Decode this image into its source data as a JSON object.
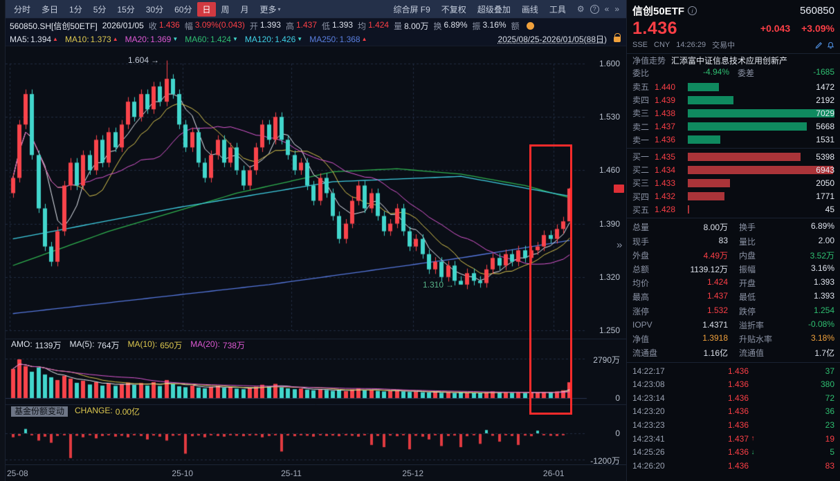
{
  "icons": {
    "gear": "⚙",
    "help": "?",
    "chevron_left": "«",
    "chevron_right": "»",
    "collapse": "»",
    "caret_down": "▾",
    "arrow_right": "→",
    "up": "▲",
    "down": "▼",
    "info": "i"
  },
  "toolbar": {
    "periods": [
      {
        "label": "分时"
      },
      {
        "label": "多日"
      },
      {
        "label": "1分"
      },
      {
        "label": "5分"
      },
      {
        "label": "15分"
      },
      {
        "label": "30分"
      },
      {
        "label": "60分"
      },
      {
        "label": "日",
        "active": true
      },
      {
        "label": "周"
      },
      {
        "label": "月"
      },
      {
        "label": "更多",
        "dropdown": true
      }
    ],
    "actions": [
      {
        "label": "综合屏 F9"
      },
      {
        "label": "不复权"
      },
      {
        "label": "超级叠加"
      },
      {
        "label": "画线"
      },
      {
        "label": "工具"
      }
    ]
  },
  "quote_bar": {
    "symbol": "560850.SH[信创50ETF]",
    "date": "2026/01/05",
    "fields": [
      {
        "label": "收",
        "value": "1.436",
        "color": "red"
      },
      {
        "label": "幅",
        "value": "3.09%(0.043)",
        "color": "red"
      },
      {
        "label": "开",
        "value": "1.393",
        "color": "white"
      },
      {
        "label": "高",
        "value": "1.437",
        "color": "red"
      },
      {
        "label": "低",
        "value": "1.393",
        "color": "white"
      },
      {
        "label": "均",
        "value": "1.424",
        "color": "red"
      },
      {
        "label": "量",
        "value": "8.00万",
        "color": "white"
      },
      {
        "label": "换",
        "value": "6.89%",
        "color": "white"
      },
      {
        "label": "振",
        "value": "3.16%",
        "color": "white"
      },
      {
        "label": "额",
        "value": "",
        "color": "white"
      }
    ]
  },
  "ma_bar": {
    "items": [
      {
        "label": "MA5:",
        "value": "1.394",
        "color": "white",
        "dir": "up"
      },
      {
        "label": "MA10:",
        "value": "1.373",
        "color": "yellow",
        "dir": "up"
      },
      {
        "label": "MA20:",
        "value": "1.369",
        "color": "magenta",
        "dir": "down"
      },
      {
        "label": "MA60:",
        "value": "1.424",
        "color": "green",
        "dir": "down"
      },
      {
        "label": "MA120:",
        "value": "1.426",
        "color": "cyan",
        "dir": "down"
      },
      {
        "label": "MA250:",
        "value": "1.368",
        "color": "blue",
        "dir": "up"
      }
    ],
    "range": "2025/08/25-2026/01/05(88日)"
  },
  "chart": {
    "price_ticks": [
      "1.600",
      "1.530",
      "1.460",
      "1.390",
      "1.320",
      "1.250"
    ],
    "high_label": "1.604",
    "low_label": "1.310",
    "vol_axis_top": "2790万",
    "vol_axis_zero": "0",
    "fund_axis_zero": "0",
    "fund_axis_bottom": "-1200万",
    "x_labels": [
      {
        "label": "25-08",
        "idx": 0
      },
      {
        "label": "25-10",
        "idx": 27
      },
      {
        "label": "25-11",
        "idx": 44
      },
      {
        "label": "25-12",
        "idx": 63
      },
      {
        "label": "26-01",
        "idx": 85
      }
    ],
    "volume_legend": [
      {
        "label": "AMO:",
        "value": "1139万",
        "color": "white"
      },
      {
        "label": "MA(5):",
        "value": "764万",
        "color": "white"
      },
      {
        "label": "MA(10):",
        "value": "650万",
        "color": "yellow"
      },
      {
        "label": "MA(20):",
        "value": "738万",
        "color": "magenta"
      }
    ],
    "fund_label": "基金份额变动",
    "fund_change_label": "CHANGE:",
    "fund_change_value": "0.00亿"
  },
  "chart_data": {
    "type": "candlestick",
    "title": "信创50ETF 日K 2025/08/25-2026/01/05",
    "price_range": [
      1.25,
      1.6
    ],
    "volume_max": 2790,
    "fund_range": [
      -1200,
      0
    ],
    "open_first": 1.43,
    "overrides": {
      "high_idx": 24,
      "high_val": 1.604,
      "low_idx": 70,
      "low_val": 1.31,
      "last": {
        "open": 1.393,
        "high": 1.437,
        "low": 1.393,
        "close": 1.436
      }
    },
    "closes": [
      1.45,
      1.52,
      1.56,
      1.48,
      1.41,
      1.36,
      1.34,
      1.38,
      1.44,
      1.47,
      1.44,
      1.48,
      1.46,
      1.5,
      1.47,
      1.51,
      1.49,
      1.52,
      1.55,
      1.53,
      1.56,
      1.54,
      1.57,
      1.55,
      1.58,
      1.56,
      1.52,
      1.49,
      1.51,
      1.47,
      1.45,
      1.48,
      1.5,
      1.47,
      1.49,
      1.46,
      1.44,
      1.46,
      1.49,
      1.52,
      1.5,
      1.53,
      1.5,
      1.48,
      1.46,
      1.47,
      1.44,
      1.42,
      1.45,
      1.43,
      1.4,
      1.37,
      1.39,
      1.42,
      1.44,
      1.41,
      1.43,
      1.4,
      1.38,
      1.39,
      1.41,
      1.38,
      1.36,
      1.37,
      1.35,
      1.33,
      1.34,
      1.32,
      1.335,
      1.315,
      1.31,
      1.325,
      1.315,
      1.312,
      1.33,
      1.345,
      1.335,
      1.35,
      1.34,
      1.355,
      1.345,
      1.355,
      1.36,
      1.375,
      1.37,
      1.383,
      1.393,
      1.436
    ],
    "volumes": [
      2100,
      2790,
      2300,
      1900,
      2200,
      1700,
      1500,
      1300,
      1600,
      1400,
      1100,
      1250,
      980,
      1150,
      900,
      1050,
      880,
      1000,
      1120,
      950,
      1080,
      900,
      1150,
      870,
      1300,
      1000,
      850,
      780,
      900,
      760,
      700,
      820,
      880,
      740,
      800,
      680,
      640,
      720,
      820,
      960,
      840,
      1020,
      780,
      700,
      640,
      690,
      600,
      560,
      640,
      580,
      520,
      560,
      500,
      620,
      700,
      560,
      600,
      520,
      480,
      500,
      560,
      480,
      440,
      470,
      420,
      400,
      430,
      380,
      420,
      360,
      400,
      380,
      350,
      370,
      420,
      480,
      400,
      440,
      380,
      430,
      360,
      420,
      390,
      450,
      400,
      480,
      560,
      1139
    ],
    "fund_change": [
      -150,
      -80,
      200,
      -60,
      -300,
      -120,
      -400,
      -90,
      -60,
      -1100,
      -80,
      -150,
      -60,
      -200,
      -90,
      -60,
      -120,
      -80,
      -150,
      -60,
      -90,
      -250,
      -70,
      -120,
      -300,
      -80,
      -60,
      -900,
      -100,
      -70,
      -150,
      -60,
      -90,
      -120,
      -60,
      -80,
      -100,
      -70,
      -60,
      -150,
      -90,
      -60,
      -800,
      -70,
      -100,
      -60,
      -80,
      -120,
      -60,
      -90,
      -70,
      -100,
      -60,
      -80,
      -120,
      -60,
      -500,
      -90,
      -600,
      -70,
      -100,
      -60,
      -700,
      -80,
      -120,
      -250,
      -60,
      -550,
      -90,
      -70,
      -600,
      -100,
      -60,
      -450,
      150,
      -80,
      -350,
      -60,
      -90,
      -500,
      -70,
      -100,
      120,
      -60,
      -80,
      -90,
      -60,
      0
    ],
    "ma_long": {
      "ma60": [
        [
          0,
          1.335
        ],
        [
          15,
          1.38
        ],
        [
          35,
          1.43
        ],
        [
          50,
          1.458
        ],
        [
          60,
          1.462
        ],
        [
          70,
          1.455
        ],
        [
          80,
          1.44
        ],
        [
          87,
          1.424
        ]
      ],
      "ma120": [
        [
          0,
          1.37
        ],
        [
          25,
          1.41
        ],
        [
          50,
          1.445
        ],
        [
          70,
          1.452
        ],
        [
          87,
          1.426
        ]
      ],
      "ma250": [
        [
          0,
          1.272
        ],
        [
          40,
          1.31
        ],
        [
          70,
          1.345
        ],
        [
          87,
          1.368
        ]
      ]
    },
    "ma_windows": [
      5,
      10,
      20,
      60,
      120,
      250
    ]
  },
  "right_panel": {
    "name": "信创50ETF",
    "code": "560850",
    "price": "1.436",
    "change": "+0.043",
    "change_pct": "+3.09%",
    "exchange": "SSE",
    "currency": "CNY",
    "time": "14:26:29",
    "status": "交易中",
    "nav_label": "净值走势",
    "nav_value": "汇添富中证信息技术应用创新产",
    "weibi_label": "委比",
    "weibi": "-4.94%",
    "weicha_label": "委差",
    "weicha": "-1685",
    "asks": [
      {
        "label": "卖五",
        "price": "1.440",
        "vol": "1472",
        "pct": 21
      },
      {
        "label": "卖四",
        "price": "1.439",
        "vol": "2192",
        "pct": 31
      },
      {
        "label": "卖三",
        "price": "1.438",
        "vol": "7029",
        "pct": 100
      },
      {
        "label": "卖二",
        "price": "1.437",
        "vol": "5668",
        "pct": 81
      },
      {
        "label": "卖一",
        "price": "1.436",
        "vol": "1531",
        "pct": 22
      }
    ],
    "bids": [
      {
        "label": "买一",
        "price": "1.435",
        "vol": "5398",
        "pct": 77
      },
      {
        "label": "买二",
        "price": "1.434",
        "vol": "6943",
        "pct": 99
      },
      {
        "label": "买三",
        "price": "1.433",
        "vol": "2050",
        "pct": 29
      },
      {
        "label": "买四",
        "price": "1.432",
        "vol": "1771",
        "pct": 25
      },
      {
        "label": "买五",
        "price": "1.428",
        "vol": "45",
        "pct": 1
      }
    ],
    "stats": [
      {
        "l1": "总量",
        "v1": "8.00万",
        "c1": "white",
        "l2": "换手",
        "v2": "6.89%",
        "c2": "white"
      },
      {
        "l1": "现手",
        "v1": "83",
        "c1": "white",
        "l2": "量比",
        "v2": "2.00",
        "c2": "white"
      },
      {
        "l1": "外盘",
        "v1": "4.49万",
        "c1": "red",
        "l2": "内盘",
        "v2": "3.52万",
        "c2": "green"
      },
      {
        "l1": "总额",
        "v1": "1139.12万",
        "c1": "white",
        "l2": "振幅",
        "v2": "3.16%",
        "c2": "white"
      },
      {
        "l1": "均价",
        "v1": "1.424",
        "c1": "red",
        "l2": "开盘",
        "v2": "1.393",
        "c2": "white"
      },
      {
        "l1": "最高",
        "v1": "1.437",
        "c1": "red",
        "l2": "最低",
        "v2": "1.393",
        "c2": "white"
      },
      {
        "l1": "涨停",
        "v1": "1.532",
        "c1": "red",
        "l2": "跌停",
        "v2": "1.254",
        "c2": "green"
      },
      {
        "l1": "IOPV",
        "v1": "1.4371",
        "c1": "white",
        "l2": "溢折率",
        "v2": "-0.08%",
        "c2": "green"
      },
      {
        "l1": "净值",
        "v1": "1.3918",
        "c1": "orange",
        "l2": "升贴水率",
        "v2": "3.18%",
        "c2": "orange"
      },
      {
        "l1": "流通盘",
        "v1": "1.16亿",
        "c1": "white",
        "l2": "流通值",
        "v2": "1.7亿",
        "c2": "white"
      }
    ],
    "ticks": [
      {
        "time": "14:22:17",
        "price": "1.436",
        "arrow": "",
        "ac": "gray",
        "vol": "37",
        "vc": "green"
      },
      {
        "time": "14:23:08",
        "price": "1.436",
        "arrow": "",
        "ac": "gray",
        "vol": "380",
        "vc": "green"
      },
      {
        "time": "14:23:14",
        "price": "1.436",
        "arrow": "",
        "ac": "gray",
        "vol": "72",
        "vc": "green"
      },
      {
        "time": "14:23:20",
        "price": "1.436",
        "arrow": "",
        "ac": "gray",
        "vol": "36",
        "vc": "green"
      },
      {
        "time": "14:23:23",
        "price": "1.436",
        "arrow": "",
        "ac": "gray",
        "vol": "23",
        "vc": "green"
      },
      {
        "time": "14:23:41",
        "price": "1.437",
        "arrow": "↑",
        "ac": "red",
        "vol": "19",
        "vc": "red"
      },
      {
        "time": "14:25:26",
        "price": "1.436",
        "arrow": "↓",
        "ac": "green",
        "vol": "5",
        "vc": "green"
      },
      {
        "time": "14:26:20",
        "price": "1.436",
        "arrow": "",
        "ac": "gray",
        "vol": "83",
        "vc": "red"
      }
    ]
  }
}
